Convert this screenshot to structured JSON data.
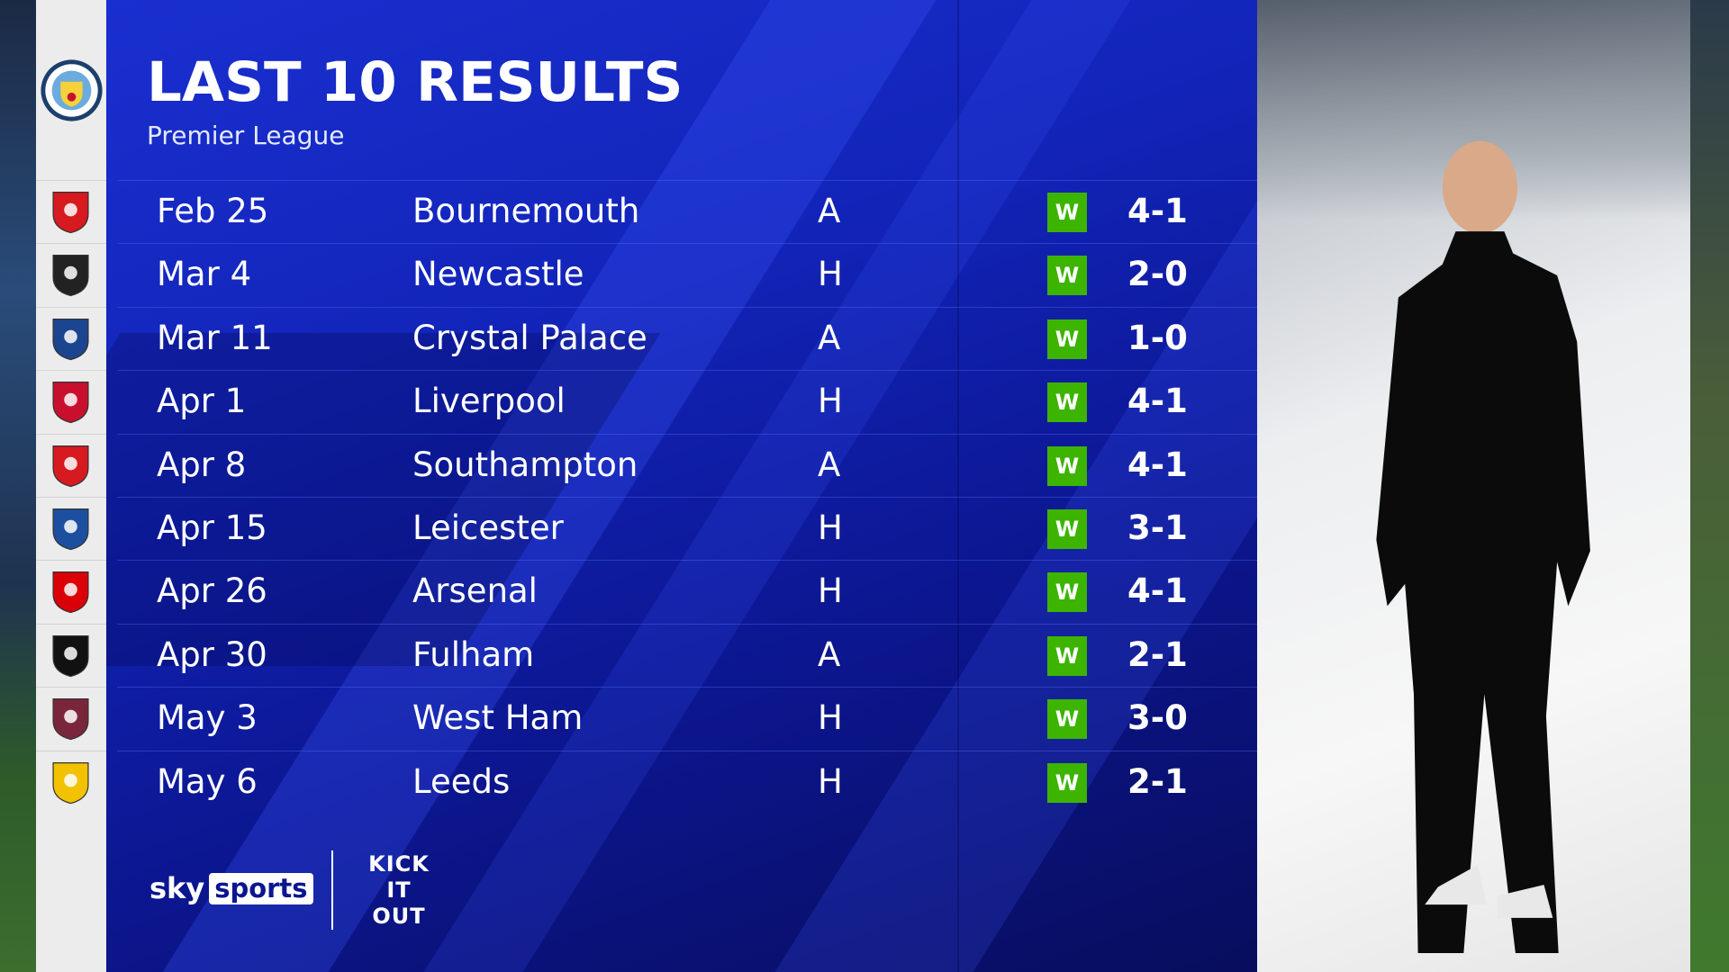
{
  "header": {
    "title": "LAST 10 RESULTS",
    "subtitle": "Premier League",
    "club_crest": "manchester-city-crest"
  },
  "results": [
    {
      "date": "Feb 25",
      "opponent": "Bournemouth",
      "venue": "A",
      "outcome": "W",
      "score": "4-1",
      "crest_color": "#d71920"
    },
    {
      "date": "Mar 4",
      "opponent": "Newcastle",
      "venue": "H",
      "outcome": "W",
      "score": "2-0",
      "crest_color": "#222222"
    },
    {
      "date": "Mar 11",
      "opponent": "Crystal Palace",
      "venue": "A",
      "outcome": "W",
      "score": "1-0",
      "crest_color": "#1b458f"
    },
    {
      "date": "Apr 1",
      "opponent": "Liverpool",
      "venue": "H",
      "outcome": "W",
      "score": "4-1",
      "crest_color": "#c8102e"
    },
    {
      "date": "Apr 8",
      "opponent": "Southampton",
      "venue": "A",
      "outcome": "W",
      "score": "4-1",
      "crest_color": "#d71920"
    },
    {
      "date": "Apr 15",
      "opponent": "Leicester",
      "venue": "H",
      "outcome": "W",
      "score": "3-1",
      "crest_color": "#1d4fa0"
    },
    {
      "date": "Apr 26",
      "opponent": "Arsenal",
      "venue": "H",
      "outcome": "W",
      "score": "4-1",
      "crest_color": "#db0007"
    },
    {
      "date": "Apr 30",
      "opponent": "Fulham",
      "venue": "A",
      "outcome": "W",
      "score": "2-1",
      "crest_color": "#111111"
    },
    {
      "date": "May 3",
      "opponent": "West Ham",
      "venue": "H",
      "outcome": "W",
      "score": "3-0",
      "crest_color": "#7a263a"
    },
    {
      "date": "May 6",
      "opponent": "Leeds",
      "venue": "H",
      "outcome": "W",
      "score": "2-1",
      "crest_color": "#f2c200"
    }
  ],
  "colors": {
    "win": "#3cb400",
    "panel": "#1224b8"
  },
  "footer": {
    "sky_a": "sky",
    "sky_b": "sports",
    "kick_it_out": "KICK IT OUT"
  }
}
